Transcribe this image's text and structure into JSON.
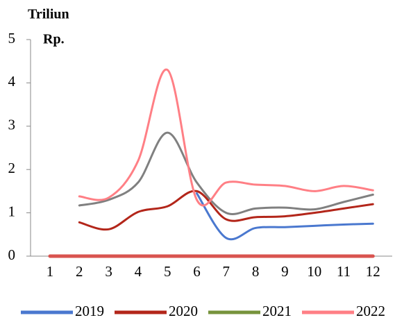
{
  "chart_data": {
    "type": "line",
    "y_label": [
      "Triliun",
      "Rp."
    ],
    "categories": [
      "1",
      "2",
      "3",
      "4",
      "5",
      "6",
      "7",
      "8",
      "9",
      "10",
      "11",
      "12"
    ],
    "ylim": [
      0,
      5
    ],
    "yticks": [
      0,
      1,
      2,
      3,
      4,
      5
    ],
    "legend": "bottom",
    "series": [
      {
        "name": "2019",
        "color": "#4a78cf",
        "values": [
          null,
          null,
          null,
          null,
          null,
          1.45,
          0.42,
          0.65,
          0.67,
          0.7,
          0.73,
          0.75
        ]
      },
      {
        "name": "2020",
        "color": "#b3261a",
        "values": [
          null,
          0.78,
          0.62,
          1.02,
          1.15,
          1.5,
          0.85,
          0.9,
          0.92,
          1.0,
          1.1,
          1.2
        ]
      },
      {
        "name": "2021",
        "color": "#77933c",
        "values": [
          null,
          null,
          null,
          null,
          null,
          null,
          null,
          null,
          null,
          null,
          null,
          null
        ]
      },
      {
        "name": "2022",
        "color": "#ff7f85",
        "values": [
          null,
          1.38,
          1.35,
          2.2,
          4.3,
          1.3,
          1.7,
          1.65,
          1.62,
          1.5,
          1.62,
          1.52
        ]
      },
      {
        "color": "#808080",
        "values": [
          null,
          1.17,
          1.3,
          1.7,
          2.85,
          1.7,
          1.0,
          1.1,
          1.12,
          1.08,
          1.25,
          1.42
        ]
      },
      {
        "color": "#d9534f",
        "values": [
          0,
          0,
          0,
          0,
          0,
          0,
          0,
          0,
          0,
          0,
          0,
          0
        ]
      }
    ]
  }
}
